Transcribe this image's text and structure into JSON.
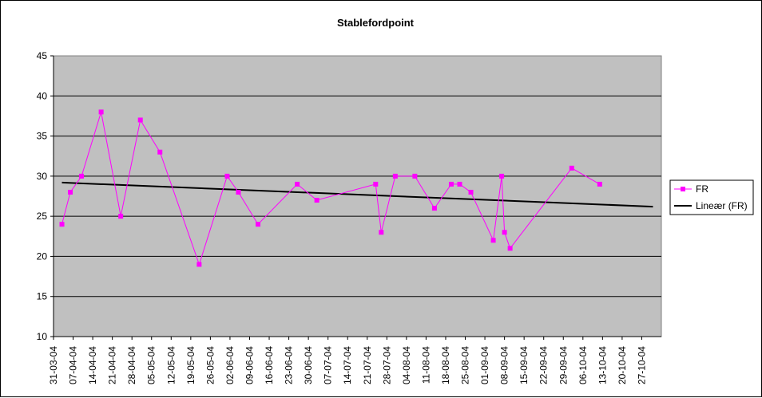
{
  "chart_data": {
    "type": "line",
    "title": "Stablefordpoint",
    "xlabel": "",
    "ylabel": "",
    "ylim": [
      10,
      45
    ],
    "yticks": [
      10,
      15,
      20,
      25,
      30,
      35,
      40,
      45
    ],
    "grid": true,
    "legend_position": "right",
    "colors": {
      "plot_bg": "#c0c0c0",
      "series": "#ff00ff",
      "trend": "#000000",
      "grid": "#000000"
    },
    "xlim": [
      "31-03-04",
      "03-11-04"
    ],
    "x_tick_labels": [
      "31-03-04",
      "07-04-04",
      "14-04-04",
      "21-04-04",
      "28-04-04",
      "05-05-04",
      "12-05-04",
      "19-05-04",
      "26-05-04",
      "02-06-04",
      "09-06-04",
      "16-06-04",
      "23-06-04",
      "30-06-04",
      "07-07-04",
      "14-07-04",
      "21-07-04",
      "28-07-04",
      "04-08-04",
      "11-08-04",
      "18-08-04",
      "25-08-04",
      "01-09-04",
      "08-09-04",
      "15-09-04",
      "22-09-04",
      "29-09-04",
      "06-10-04",
      "13-10-04",
      "20-10-04",
      "27-10-04"
    ],
    "series": [
      {
        "name": "FR",
        "points": [
          {
            "x": "2004-04-03",
            "y": 24
          },
          {
            "x": "2004-04-06",
            "y": 28
          },
          {
            "x": "2004-04-10",
            "y": 30
          },
          {
            "x": "2004-04-17",
            "y": 38
          },
          {
            "x": "2004-04-24",
            "y": 25
          },
          {
            "x": "2004-05-01",
            "y": 37
          },
          {
            "x": "2004-05-08",
            "y": 33
          },
          {
            "x": "2004-05-22",
            "y": 19
          },
          {
            "x": "2004-06-01",
            "y": 30
          },
          {
            "x": "2004-06-05",
            "y": 28
          },
          {
            "x": "2004-06-12",
            "y": 24
          },
          {
            "x": "2004-06-26",
            "y": 29
          },
          {
            "x": "2004-07-03",
            "y": 27
          },
          {
            "x": "2004-07-24",
            "y": 29
          },
          {
            "x": "2004-07-26",
            "y": 23
          },
          {
            "x": "2004-07-31",
            "y": 30
          },
          {
            "x": "2004-08-07",
            "y": 30
          },
          {
            "x": "2004-08-14",
            "y": 26
          },
          {
            "x": "2004-08-20",
            "y": 29
          },
          {
            "x": "2004-08-23",
            "y": 29
          },
          {
            "x": "2004-08-27",
            "y": 28
          },
          {
            "x": "2004-09-04",
            "y": 22
          },
          {
            "x": "2004-09-07",
            "y": 30
          },
          {
            "x": "2004-09-08",
            "y": 23
          },
          {
            "x": "2004-09-10",
            "y": 21
          },
          {
            "x": "2004-10-02",
            "y": 31
          },
          {
            "x": "2004-10-12",
            "y": 29
          }
        ]
      },
      {
        "name": "Lineær (FR)",
        "trendline": true,
        "points": [
          {
            "x": "2004-04-03",
            "y": 29.2
          },
          {
            "x": "2004-10-31",
            "y": 26.2
          }
        ]
      }
    ]
  }
}
